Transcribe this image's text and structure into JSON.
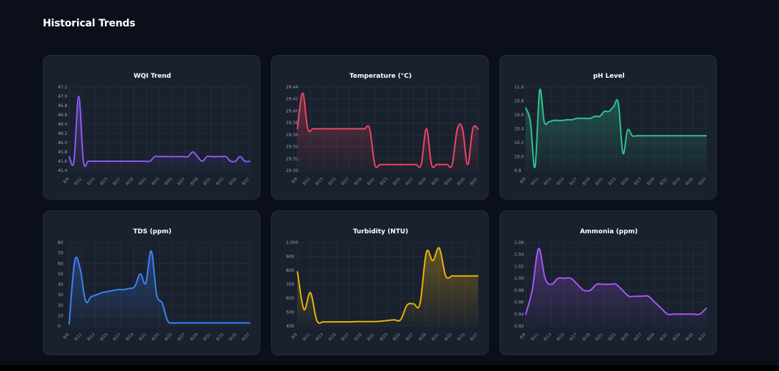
{
  "page": {
    "title": "Historical Trends"
  },
  "x_labels": [
    "8/9",
    "8/11",
    "8/13",
    "8/15",
    "8/17",
    "8/19",
    "8/21",
    "8/23",
    "8/25",
    "8/27",
    "8/29",
    "8/31",
    "8/33",
    "8/35",
    "8/37"
  ],
  "chart_data": [
    {
      "type": "area",
      "title": "WQI Trend",
      "color": "#8b5cf6",
      "ylim": [
        45.4,
        47.2
      ],
      "yticks": [
        "47.2",
        "47.0",
        "46.8",
        "46.6",
        "46.4",
        "46.2",
        "46.0",
        "45.8",
        "45.6",
        "45.4"
      ],
      "values": [
        45.7,
        45.6,
        47.0,
        45.6,
        45.6,
        45.6,
        45.6,
        45.6,
        45.6,
        45.6,
        45.6,
        45.6,
        45.6,
        45.6,
        45.6,
        45.6,
        45.6,
        45.6,
        45.7,
        45.7,
        45.7,
        45.7,
        45.7,
        45.7,
        45.7,
        45.7,
        45.8,
        45.7,
        45.6,
        45.7,
        45.7,
        45.7,
        45.7,
        45.7,
        45.6,
        45.6,
        45.7,
        45.6,
        45.6
      ]
    },
    {
      "type": "area",
      "title": "Temperature (°C)",
      "color": "#f04663",
      "ylim": [
        29.3,
        29.44
      ],
      "yticks": [
        "29.44",
        "29.42",
        "29.40",
        "29.38",
        "29.36",
        "29.34",
        "29.32",
        "29.30"
      ],
      "values": [
        29.37,
        29.43,
        29.37,
        29.37,
        29.37,
        29.37,
        29.37,
        29.37,
        29.37,
        29.37,
        29.37,
        29.37,
        29.37,
        29.37,
        29.37,
        29.31,
        29.31,
        29.31,
        29.31,
        29.31,
        29.31,
        29.31,
        29.31,
        29.31,
        29.31,
        29.37,
        29.31,
        29.31,
        29.31,
        29.31,
        29.31,
        29.37,
        29.37,
        29.31,
        29.37,
        29.37
      ]
    },
    {
      "type": "area",
      "title": "pH Level",
      "color": "#2ec48f",
      "ylim": [
        9.8,
        11.0
      ],
      "yticks": [
        "11.0",
        "10.8",
        "10.6",
        "10.4",
        "10.2",
        "10.0",
        "9.8"
      ],
      "values": [
        10.7,
        10.5,
        9.85,
        10.95,
        10.5,
        10.5,
        10.52,
        10.52,
        10.52,
        10.53,
        10.53,
        10.55,
        10.55,
        10.55,
        10.55,
        10.58,
        10.58,
        10.65,
        10.65,
        10.72,
        10.77,
        10.05,
        10.38,
        10.3,
        10.3,
        10.3,
        10.3,
        10.3,
        10.3,
        10.3,
        10.3,
        10.3,
        10.3,
        10.3,
        10.3,
        10.3,
        10.3,
        10.3,
        10.3,
        10.3
      ]
    },
    {
      "type": "area",
      "title": "TDS (ppm)",
      "color": "#3b82f6",
      "ylim": [
        0,
        80
      ],
      "yticks": [
        "80",
        "70",
        "60",
        "50",
        "40",
        "30",
        "20",
        "10",
        "0"
      ],
      "values": [
        2,
        62,
        55,
        24,
        28,
        30,
        32,
        33,
        34,
        35,
        35,
        36,
        38,
        50,
        41,
        72,
        30,
        22,
        5,
        3,
        3,
        3,
        3,
        3,
        3,
        3,
        3,
        3,
        3,
        3,
        3,
        3,
        3,
        3
      ]
    },
    {
      "type": "area",
      "title": "Turbidity (NTU)",
      "color": "#eab308",
      "ylim": [
        400,
        1000
      ],
      "yticks": [
        "1,000",
        "900",
        "800",
        "700",
        "600",
        "500",
        "400"
      ],
      "values": [
        790,
        520,
        640,
        440,
        430,
        430,
        430,
        430,
        430,
        432,
        432,
        432,
        432,
        435,
        440,
        445,
        445,
        550,
        560,
        560,
        930,
        870,
        960,
        760,
        760,
        760,
        760,
        760,
        760
      ]
    },
    {
      "type": "area",
      "title": "Ammonia (ppm)",
      "color": "#a855f7",
      "ylim": [
        0.92,
        1.06
      ],
      "yticks": [
        "1.06",
        "1.04",
        "1.02",
        "1.00",
        "0.98",
        "0.96",
        "0.94",
        "0.92"
      ],
      "values": [
        0.94,
        0.98,
        1.05,
        1.0,
        0.99,
        1.0,
        1.0,
        1.0,
        0.99,
        0.98,
        0.98,
        0.99,
        0.99,
        0.99,
        0.99,
        0.98,
        0.97,
        0.97,
        0.97,
        0.97,
        0.96,
        0.95,
        0.94,
        0.94,
        0.94,
        0.94,
        0.94,
        0.94,
        0.95
      ]
    }
  ]
}
